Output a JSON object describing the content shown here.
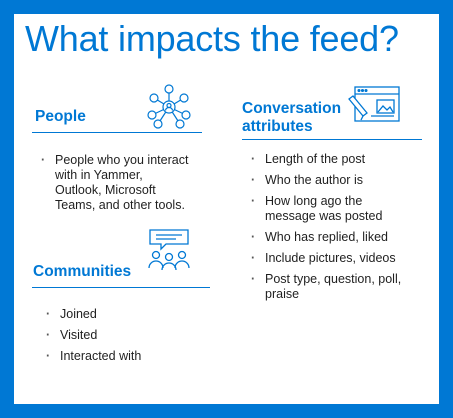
{
  "title": "What impacts the feed?",
  "people": {
    "heading": "People",
    "items": [
      "People who you interact with in Yammer, Outlook, Microsoft Teams, and other tools."
    ]
  },
  "communities": {
    "heading": "Communities",
    "items": [
      "Joined",
      "Visited",
      "Interacted with"
    ]
  },
  "conversation": {
    "heading_line1": "Conversation",
    "heading_line2": "attributes",
    "items": [
      "Length of the post",
      "Who the author is",
      "How long ago the message was posted",
      "Who has replied, liked",
      "Include pictures, videos",
      "Post type, question, poll, praise"
    ]
  },
  "colors": {
    "accent": "#0078d4",
    "text": "#1f1f1f",
    "background": "#ffffff"
  },
  "icons": [
    "people-network-icon",
    "community-chat-icon",
    "document-edit-icon"
  ]
}
